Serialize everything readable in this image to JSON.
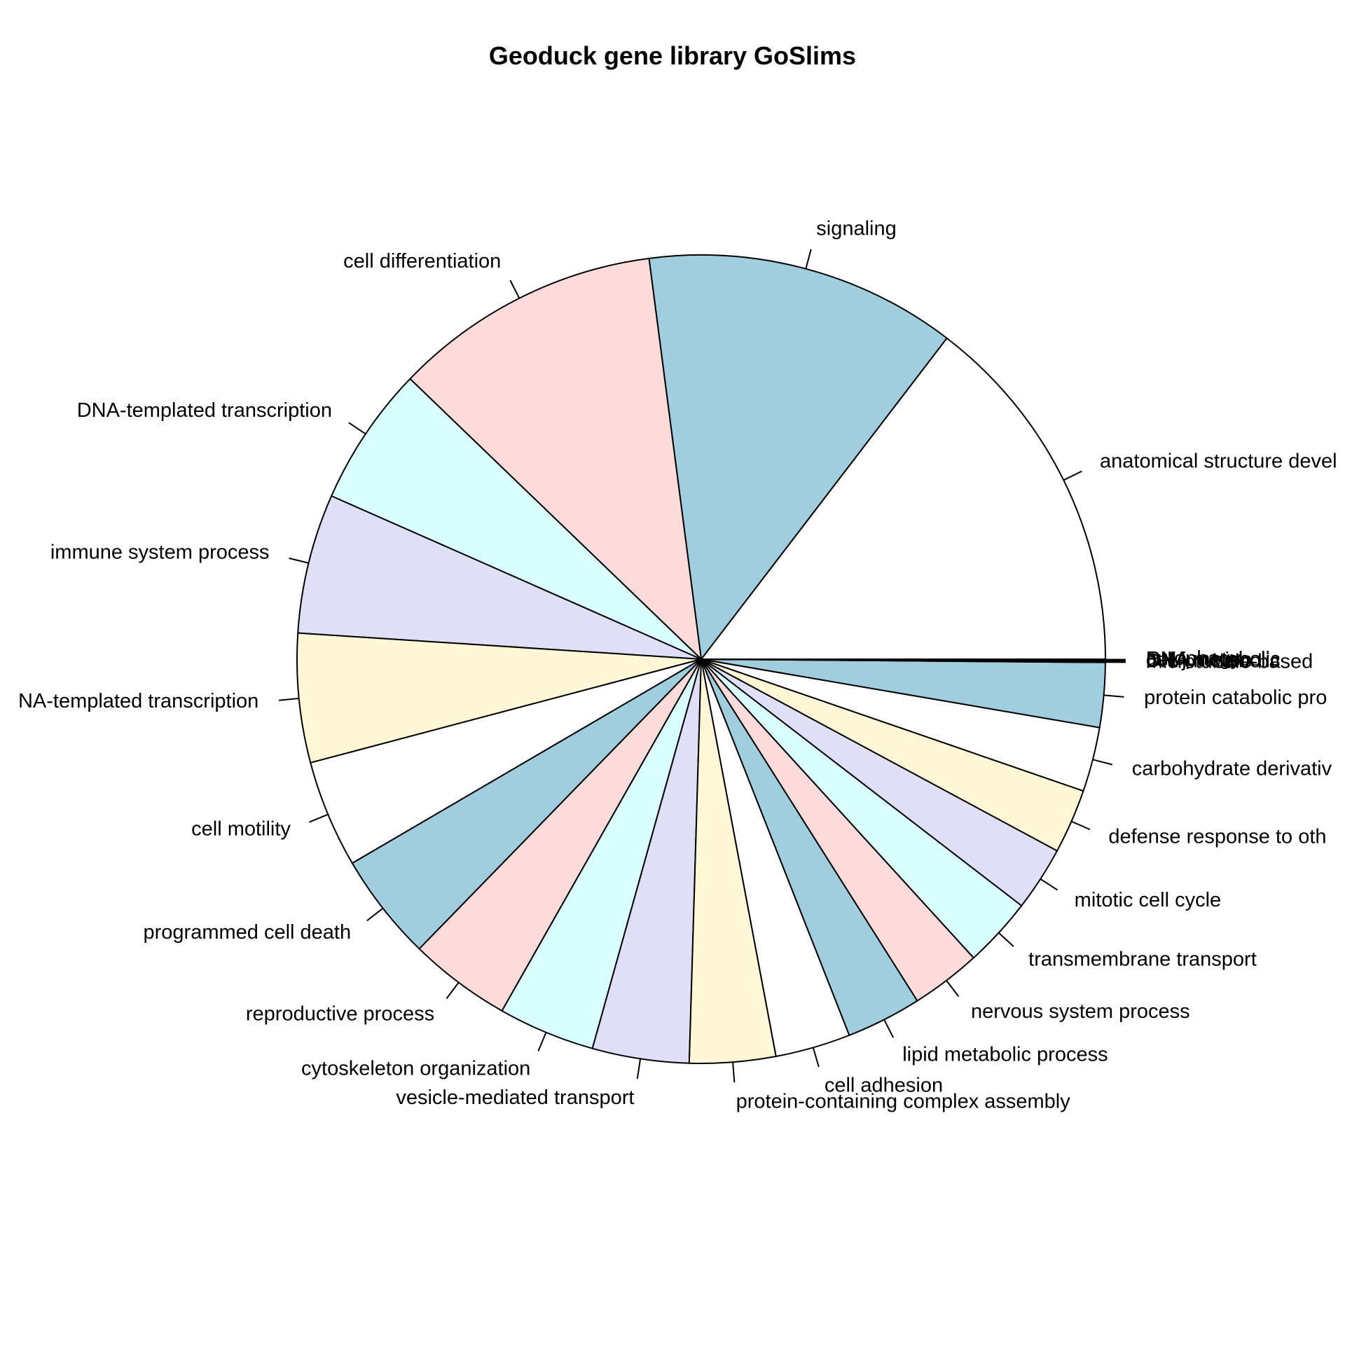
{
  "chart_data": {
    "type": "pie",
    "title": "Geoduck gene library GoSlims",
    "palette": [
      "#FFFFFF",
      "#A1CEDF",
      "#FDDBDA",
      "#D9FFFF",
      "#DFDFF8",
      "#FFF7D6"
    ],
    "border_color": "#000000",
    "slices": [
      {
        "label": "anatomical structure devel",
        "value": 34
      },
      {
        "label": "signaling",
        "value": 29
      },
      {
        "label": "cell differentiation",
        "value": 25
      },
      {
        "label": "DNA-templated transcription",
        "value": 13
      },
      {
        "label": "immune system process",
        "value": 13
      },
      {
        "label": "NA-templated transcription",
        "value": 12
      },
      {
        "label": "cell motility",
        "value": 10
      },
      {
        "label": "programmed cell death",
        "value": 10
      },
      {
        "label": "reproductive process",
        "value": 9.5
      },
      {
        "label": "cytoskeleton organization",
        "value": 9
      },
      {
        "label": "vesicle-mediated transport",
        "value": 9
      },
      {
        "label": "protein-containing complex assembly",
        "value": 8
      },
      {
        "label": "cell adhesion",
        "value": 7
      },
      {
        "label": "lipid metabolic process",
        "value": 7
      },
      {
        "label": "nervous system process",
        "value": 6.5
      },
      {
        "label": "transmembrane transport",
        "value": 6.5
      },
      {
        "label": "mitotic cell cycle",
        "value": 6
      },
      {
        "label": "defense response to oth",
        "value": 6
      },
      {
        "label": "carbohydrate derivativ",
        "value": 6
      },
      {
        "label": "protein catabolic pro",
        "value": 6
      },
      {
        "label": "microtubule-based",
        "value": 0.06
      },
      {
        "label": "DNA metabolic",
        "value": 0.06
      },
      {
        "label": "cell junction",
        "value": 0.06
      },
      {
        "label": "RNA metabolic",
        "value": 0.06
      },
      {
        "label": "autophagy",
        "value": 0.06
      }
    ]
  }
}
